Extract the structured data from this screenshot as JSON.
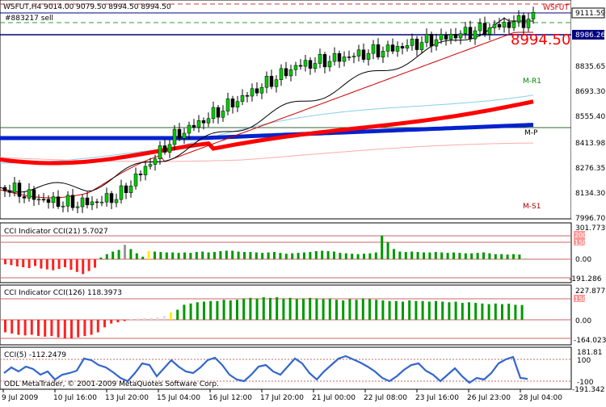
{
  "main_chart": {
    "title": "WSFUT,H4  9014.00  9079.50  8994.50  8994.50",
    "symbol_tag": "WSFUT",
    "order_label": "#883217 sell",
    "last_price_label": "8994.50",
    "price_axis": [
      "9111.59",
      "8986.26",
      "8835.65",
      "8693.30",
      "8555.40",
      "8413.98",
      "8276.35",
      "8134.30",
      "7996.70"
    ],
    "pivot_labels": {
      "m_r1": "M-R1",
      "m_p": "M-P",
      "m_s1": "M-S1"
    },
    "colors": {
      "bull_candle": "#00cc00",
      "bear_candle": "#000000",
      "ma_red": "#ff0000",
      "ma_blue": "#0022cc",
      "ma_light_blue": "#87ceeb"
    }
  },
  "cci_panel_1": {
    "title": "CCI Indicator  CCI(21) 5.7027",
    "axis": [
      "301.7739",
      "200",
      "150",
      "0.00",
      "-191.286"
    ]
  },
  "cci_panel_2": {
    "title": "CCI Indicator  CCI(126) 118.3973",
    "axis": [
      "227.8771",
      "150",
      "0.00",
      "-164.023"
    ]
  },
  "cci_panel_3": {
    "title": "CCI(5) -112.2479",
    "axis": [
      "181.81",
      "100",
      "-100",
      "-191.342"
    ],
    "copyright": "ODL MetaTrader, © 2001-2009 MetaQuotes Software Corp."
  },
  "time_axis": [
    "9 Jul 2009",
    "10 Jul 16:00",
    "13 Jul 20:00",
    "15 Jul 04:00",
    "16 Jul 12:00",
    "17 Jul 20:00",
    "21 Jul 00:00",
    "22 Jul 08:00",
    "23 Jul 16:00",
    "26 Jul 23:00",
    "28 Jul 04:00"
  ],
  "cci1_values": [
    -60,
    -70,
    -85,
    -95,
    -105,
    -80,
    -110,
    -120,
    -130,
    -115,
    -95,
    -125,
    -150,
    -175,
    -140,
    -100,
    20,
    60,
    90,
    110,
    170,
    120,
    70,
    30,
    95,
    90,
    85,
    80,
    80,
    75,
    80,
    75,
    85,
    90,
    80,
    85,
    95,
    100,
    100,
    90,
    85,
    85,
    80,
    75,
    80,
    85,
    75,
    65,
    70,
    75,
    80,
    85,
    95,
    100,
    95,
    90,
    75,
    70,
    65,
    60,
    65,
    70,
    80,
    280,
    200,
    120,
    90,
    85,
    90,
    85,
    80,
    80,
    85,
    80,
    75,
    80,
    75,
    70,
    70,
    75,
    80,
    70,
    60,
    60,
    55,
    60,
    55,
    5
  ],
  "cci2_values": [
    -100,
    -110,
    -120,
    -125,
    -120,
    -130,
    -135,
    -130,
    -140,
    -150,
    -150,
    -140,
    -130,
    -120,
    -100,
    -60,
    -30,
    -20,
    -10,
    5,
    10,
    15,
    15,
    20,
    30,
    60,
    80,
    120,
    130,
    140,
    145,
    150,
    150,
    160,
    155,
    160,
    170,
    175,
    170,
    180,
    175,
    180,
    170,
    175,
    165,
    170,
    175,
    170,
    165,
    170,
    160,
    155,
    165,
    160,
    170,
    165,
    160,
    155,
    150,
    150,
    145,
    155,
    150,
    150,
    145,
    150,
    145,
    140,
    145,
    135,
    140,
    135,
    130,
    125,
    130,
    125,
    128,
    120,
    118
  ],
  "cci3_values": [
    -40,
    30,
    -20,
    40,
    10,
    -60,
    -20,
    -120,
    -60,
    -40,
    -10,
    140,
    120,
    60,
    30,
    -30,
    -100,
    -140,
    -40,
    80,
    60,
    -80,
    20,
    120,
    40,
    -20,
    -40,
    30,
    120,
    150,
    60,
    -60,
    -120,
    -140,
    -60,
    40,
    60,
    -20,
    -60,
    40,
    140,
    80,
    -40,
    -120,
    -20,
    60,
    140,
    170,
    130,
    90,
    40,
    -20,
    -100,
    -140,
    -80,
    0,
    60,
    80,
    -10,
    -60,
    -140,
    -60,
    20,
    -80,
    -160,
    -100,
    -120,
    -40,
    80,
    130,
    160,
    -100,
    -112
  ]
}
